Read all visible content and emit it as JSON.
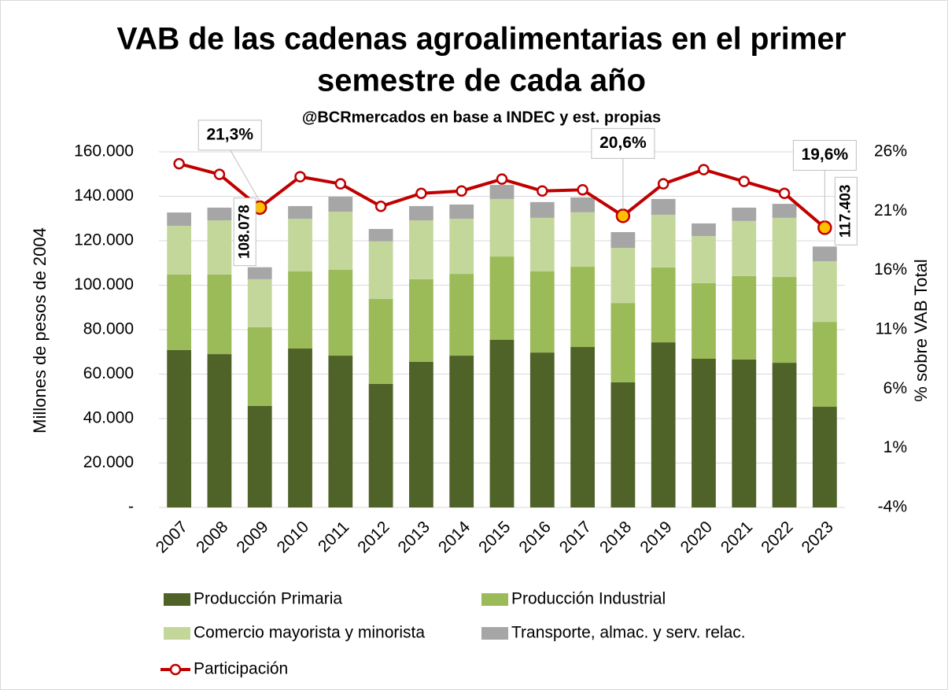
{
  "chart_data": {
    "type": "bar",
    "stacked": true,
    "title": [
      "VAB de las cadenas agroalimentarias en el primer",
      "semestre de cada año"
    ],
    "subtitle": "@BCRmercados  en base a INDEC y est. propias",
    "y_label": "Millones de pesos de 2004",
    "y2_label": "% sobre VAB Total",
    "categories": [
      "2007",
      "2008",
      "2009",
      "2010",
      "2011",
      "2012",
      "2013",
      "2014",
      "2015",
      "2016",
      "2017",
      "2018",
      "2019",
      "2020",
      "2021",
      "2022",
      "2023"
    ],
    "series": [
      {
        "name": "Producción Primaria",
        "color": "#4f6228",
        "values": [
          70800,
          69000,
          45700,
          71500,
          68300,
          55600,
          65500,
          68300,
          75400,
          69700,
          72200,
          56300,
          74300,
          66900,
          66600,
          65100,
          45300
        ]
      },
      {
        "name": "Producción Industrial",
        "color": "#9bbb59",
        "values": [
          34000,
          35800,
          35400,
          34700,
          38600,
          38200,
          37200,
          36800,
          37500,
          36500,
          36100,
          35700,
          33700,
          34000,
          37500,
          38600,
          38200
        ]
      },
      {
        "name": "Comercio mayorista y minorista",
        "color": "#c4d79b",
        "values": [
          21900,
          24400,
          21600,
          23700,
          26200,
          25900,
          26500,
          24800,
          25900,
          24100,
          24500,
          24800,
          23700,
          21200,
          24800,
          26600,
          27300
        ]
      },
      {
        "name": "Transporte, almac. y serv. relac.",
        "color": "#a6a6a6",
        "values": [
          6000,
          5700,
          5378,
          5700,
          6700,
          5600,
          6400,
          6400,
          6300,
          7100,
          6700,
          7100,
          7100,
          5700,
          6000,
          6300,
          6603
        ]
      },
      {
        "name": "Participación",
        "type": "line",
        "axis": "y2",
        "color": "#c00000",
        "highlight_color": "#ffc000",
        "values": [
          25.0,
          24.1,
          21.3,
          23.9,
          23.3,
          21.4,
          22.5,
          22.7,
          23.7,
          22.7,
          22.8,
          20.6,
          23.3,
          24.5,
          23.5,
          22.5,
          19.6
        ],
        "value_labels": [
          null,
          null,
          "21,3%",
          null,
          null,
          null,
          null,
          null,
          null,
          null,
          null,
          "20,6%",
          null,
          null,
          null,
          null,
          "19,6%"
        ]
      }
    ],
    "annotations": [
      {
        "x": "2009",
        "value": 108078,
        "label": "108.078"
      },
      {
        "x": "2023",
        "value": 117403,
        "label": "117.403"
      }
    ],
    "ylim": [
      0,
      160000
    ],
    "yticks": [
      {
        "value": 0,
        "label": "-"
      },
      {
        "value": 20000,
        "label": "20.000"
      },
      {
        "value": 40000,
        "label": "40.000"
      },
      {
        "value": 60000,
        "label": "60.000"
      },
      {
        "value": 80000,
        "label": "80.000"
      },
      {
        "value": 100000,
        "label": "100.000"
      },
      {
        "value": 120000,
        "label": "120.000"
      },
      {
        "value": 140000,
        "label": "140.000"
      },
      {
        "value": 160000,
        "label": "160.000"
      }
    ],
    "y2lim": [
      -4,
      26
    ],
    "y2ticks": [
      {
        "value": -4,
        "label": "-4%"
      },
      {
        "value": 1,
        "label": "1%"
      },
      {
        "value": 6,
        "label": "6%"
      },
      {
        "value": 11,
        "label": "11%"
      },
      {
        "value": 16,
        "label": "16%"
      },
      {
        "value": 21,
        "label": "21%"
      },
      {
        "value": 26,
        "label": "26%"
      }
    ],
    "grid": true,
    "legend": "bottom"
  }
}
